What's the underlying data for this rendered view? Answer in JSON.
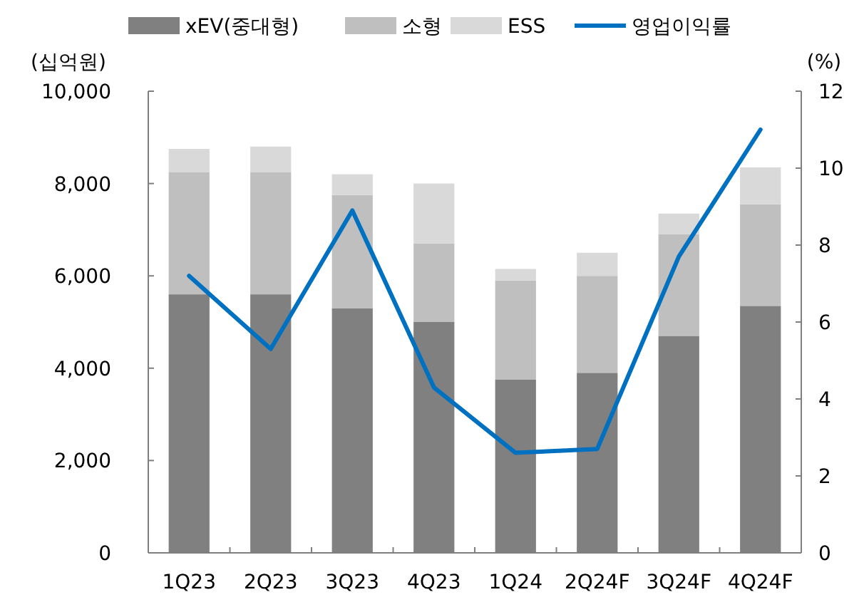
{
  "chart_data": {
    "type": "bar",
    "stacked": true,
    "legend": "top",
    "ylabel": "(십억원)",
    "y2label": "(%)",
    "categories": [
      "1Q23",
      "2Q23",
      "3Q23",
      "4Q23",
      "1Q24",
      "2Q24F",
      "3Q24F",
      "4Q24F"
    ],
    "series": [
      {
        "name": "xEV(중대형)",
        "color": "#808080",
        "values": [
          5600,
          5600,
          5300,
          5000,
          3750,
          3900,
          4700,
          5350
        ]
      },
      {
        "name": "소형",
        "color": "#bfbfbf",
        "values": [
          2650,
          2650,
          2450,
          1700,
          2150,
          2100,
          2200,
          2200
        ]
      },
      {
        "name": "ESS",
        "color": "#d9d9d9",
        "values": [
          500,
          550,
          450,
          1300,
          250,
          500,
          450,
          800
        ]
      },
      {
        "name": "영업이익률",
        "type": "line",
        "axis": "y2",
        "color": "#0070c0",
        "values": [
          7.2,
          5.3,
          8.9,
          4.3,
          2.6,
          2.7,
          7.7,
          11.0
        ]
      }
    ],
    "ylim": [
      0,
      10000
    ],
    "yticks": [
      0,
      {
        "value": 2000,
        "label": "2,000"
      },
      {
        "value": 4000,
        "label": "4,000"
      },
      {
        "value": 6000,
        "label": "6,000"
      },
      {
        "value": 8000,
        "label": "8,000"
      },
      {
        "value": 10000,
        "label": "10,000"
      }
    ],
    "y2lim": [
      0,
      12
    ],
    "y2ticks": [
      0,
      2,
      4,
      6,
      8,
      10,
      12
    ]
  }
}
